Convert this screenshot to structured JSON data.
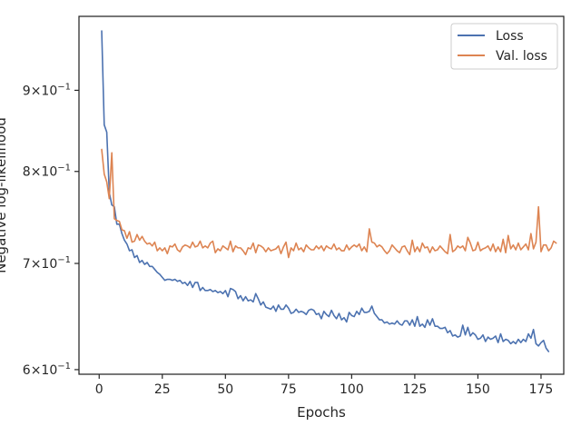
{
  "chart_data": {
    "type": "line",
    "xlabel": "Epochs",
    "ylabel": "Negative log-likelihood",
    "yscale": "log",
    "xlim": [
      -8,
      184
    ],
    "ylim": [
      0.596,
      1.002
    ],
    "grid": false,
    "legend": "top-right",
    "x_ticks": [
      0,
      25,
      50,
      75,
      100,
      125,
      150,
      175
    ],
    "y_ticks": [
      {
        "value": 0.9,
        "mantissa": "9",
        "base": "10",
        "exponent": "−1"
      },
      {
        "value": 0.8,
        "mantissa": "8",
        "base": "10",
        "exponent": "−1"
      },
      {
        "value": 0.7,
        "mantissa": "7",
        "base": "10",
        "exponent": "−1"
      },
      {
        "value": 0.6,
        "mantissa": "6",
        "base": "10",
        "exponent": "−1"
      }
    ],
    "x_start": 1,
    "series": [
      {
        "name": "Loss",
        "color": "#4c72b0",
        "values": [
          0.981,
          0.856,
          0.847,
          0.776,
          0.762,
          0.76,
          0.741,
          0.741,
          0.731,
          0.724,
          0.72,
          0.713,
          0.714,
          0.706,
          0.708,
          0.701,
          0.703,
          0.699,
          0.701,
          0.697,
          0.697,
          0.694,
          0.691,
          0.689,
          0.686,
          0.683,
          0.684,
          0.684,
          0.683,
          0.684,
          0.682,
          0.683,
          0.68,
          0.681,
          0.678,
          0.682,
          0.676,
          0.681,
          0.681,
          0.673,
          0.676,
          0.673,
          0.673,
          0.674,
          0.672,
          0.673,
          0.671,
          0.672,
          0.67,
          0.673,
          0.667,
          0.675,
          0.674,
          0.672,
          0.665,
          0.668,
          0.663,
          0.667,
          0.663,
          0.664,
          0.662,
          0.67,
          0.665,
          0.659,
          0.662,
          0.657,
          0.656,
          0.655,
          0.658,
          0.653,
          0.659,
          0.655,
          0.655,
          0.659,
          0.656,
          0.651,
          0.652,
          0.655,
          0.652,
          0.653,
          0.652,
          0.65,
          0.654,
          0.655,
          0.654,
          0.65,
          0.651,
          0.646,
          0.653,
          0.65,
          0.648,
          0.654,
          0.649,
          0.646,
          0.651,
          0.645,
          0.647,
          0.643,
          0.652,
          0.649,
          0.648,
          0.653,
          0.65,
          0.656,
          0.652,
          0.652,
          0.653,
          0.658,
          0.651,
          0.648,
          0.645,
          0.645,
          0.642,
          0.643,
          0.641,
          0.642,
          0.641,
          0.644,
          0.641,
          0.64,
          0.644,
          0.644,
          0.64,
          0.645,
          0.639,
          0.648,
          0.639,
          0.641,
          0.638,
          0.645,
          0.64,
          0.646,
          0.639,
          0.639,
          0.637,
          0.637,
          0.638,
          0.633,
          0.635,
          0.63,
          0.631,
          0.629,
          0.63,
          0.64,
          0.631,
          0.638,
          0.63,
          0.633,
          0.631,
          0.627,
          0.628,
          0.631,
          0.625,
          0.629,
          0.627,
          0.628,
          0.63,
          0.624,
          0.632,
          0.625,
          0.627,
          0.626,
          0.623,
          0.625,
          0.623,
          0.627,
          0.624,
          0.627,
          0.625,
          0.632,
          0.628,
          0.636,
          0.623,
          0.621,
          0.624,
          0.626,
          0.619,
          0.616
        ]
      },
      {
        "name": "Val. loss",
        "color": "#dd8452",
        "values": [
          0.826,
          0.797,
          0.788,
          0.769,
          0.822,
          0.747,
          0.745,
          0.744,
          0.735,
          0.734,
          0.726,
          0.733,
          0.722,
          0.723,
          0.73,
          0.724,
          0.728,
          0.723,
          0.72,
          0.721,
          0.718,
          0.722,
          0.713,
          0.716,
          0.713,
          0.716,
          0.71,
          0.718,
          0.717,
          0.72,
          0.714,
          0.712,
          0.717,
          0.719,
          0.718,
          0.716,
          0.722,
          0.717,
          0.718,
          0.723,
          0.716,
          0.718,
          0.716,
          0.721,
          0.723,
          0.711,
          0.715,
          0.713,
          0.718,
          0.716,
          0.714,
          0.723,
          0.712,
          0.718,
          0.716,
          0.716,
          0.713,
          0.709,
          0.716,
          0.715,
          0.721,
          0.711,
          0.719,
          0.718,
          0.716,
          0.712,
          0.716,
          0.713,
          0.714,
          0.715,
          0.718,
          0.71,
          0.717,
          0.722,
          0.706,
          0.716,
          0.713,
          0.721,
          0.714,
          0.716,
          0.712,
          0.719,
          0.716,
          0.714,
          0.714,
          0.718,
          0.715,
          0.718,
          0.713,
          0.718,
          0.716,
          0.715,
          0.72,
          0.714,
          0.716,
          0.713,
          0.713,
          0.719,
          0.714,
          0.717,
          0.719,
          0.717,
          0.72,
          0.713,
          0.717,
          0.712,
          0.736,
          0.722,
          0.721,
          0.717,
          0.719,
          0.717,
          0.713,
          0.71,
          0.713,
          0.719,
          0.716,
          0.713,
          0.711,
          0.717,
          0.718,
          0.713,
          0.709,
          0.724,
          0.712,
          0.717,
          0.712,
          0.721,
          0.716,
          0.717,
          0.711,
          0.717,
          0.713,
          0.714,
          0.718,
          0.715,
          0.712,
          0.71,
          0.73,
          0.712,
          0.714,
          0.718,
          0.716,
          0.718,
          0.713,
          0.727,
          0.721,
          0.713,
          0.714,
          0.722,
          0.713,
          0.715,
          0.716,
          0.718,
          0.713,
          0.72,
          0.712,
          0.717,
          0.712,
          0.725,
          0.711,
          0.729,
          0.715,
          0.719,
          0.714,
          0.721,
          0.714,
          0.717,
          0.72,
          0.714,
          0.731,
          0.715,
          0.722,
          0.76,
          0.712,
          0.719,
          0.719,
          0.713,
          0.716,
          0.723,
          0.721
        ]
      }
    ]
  }
}
